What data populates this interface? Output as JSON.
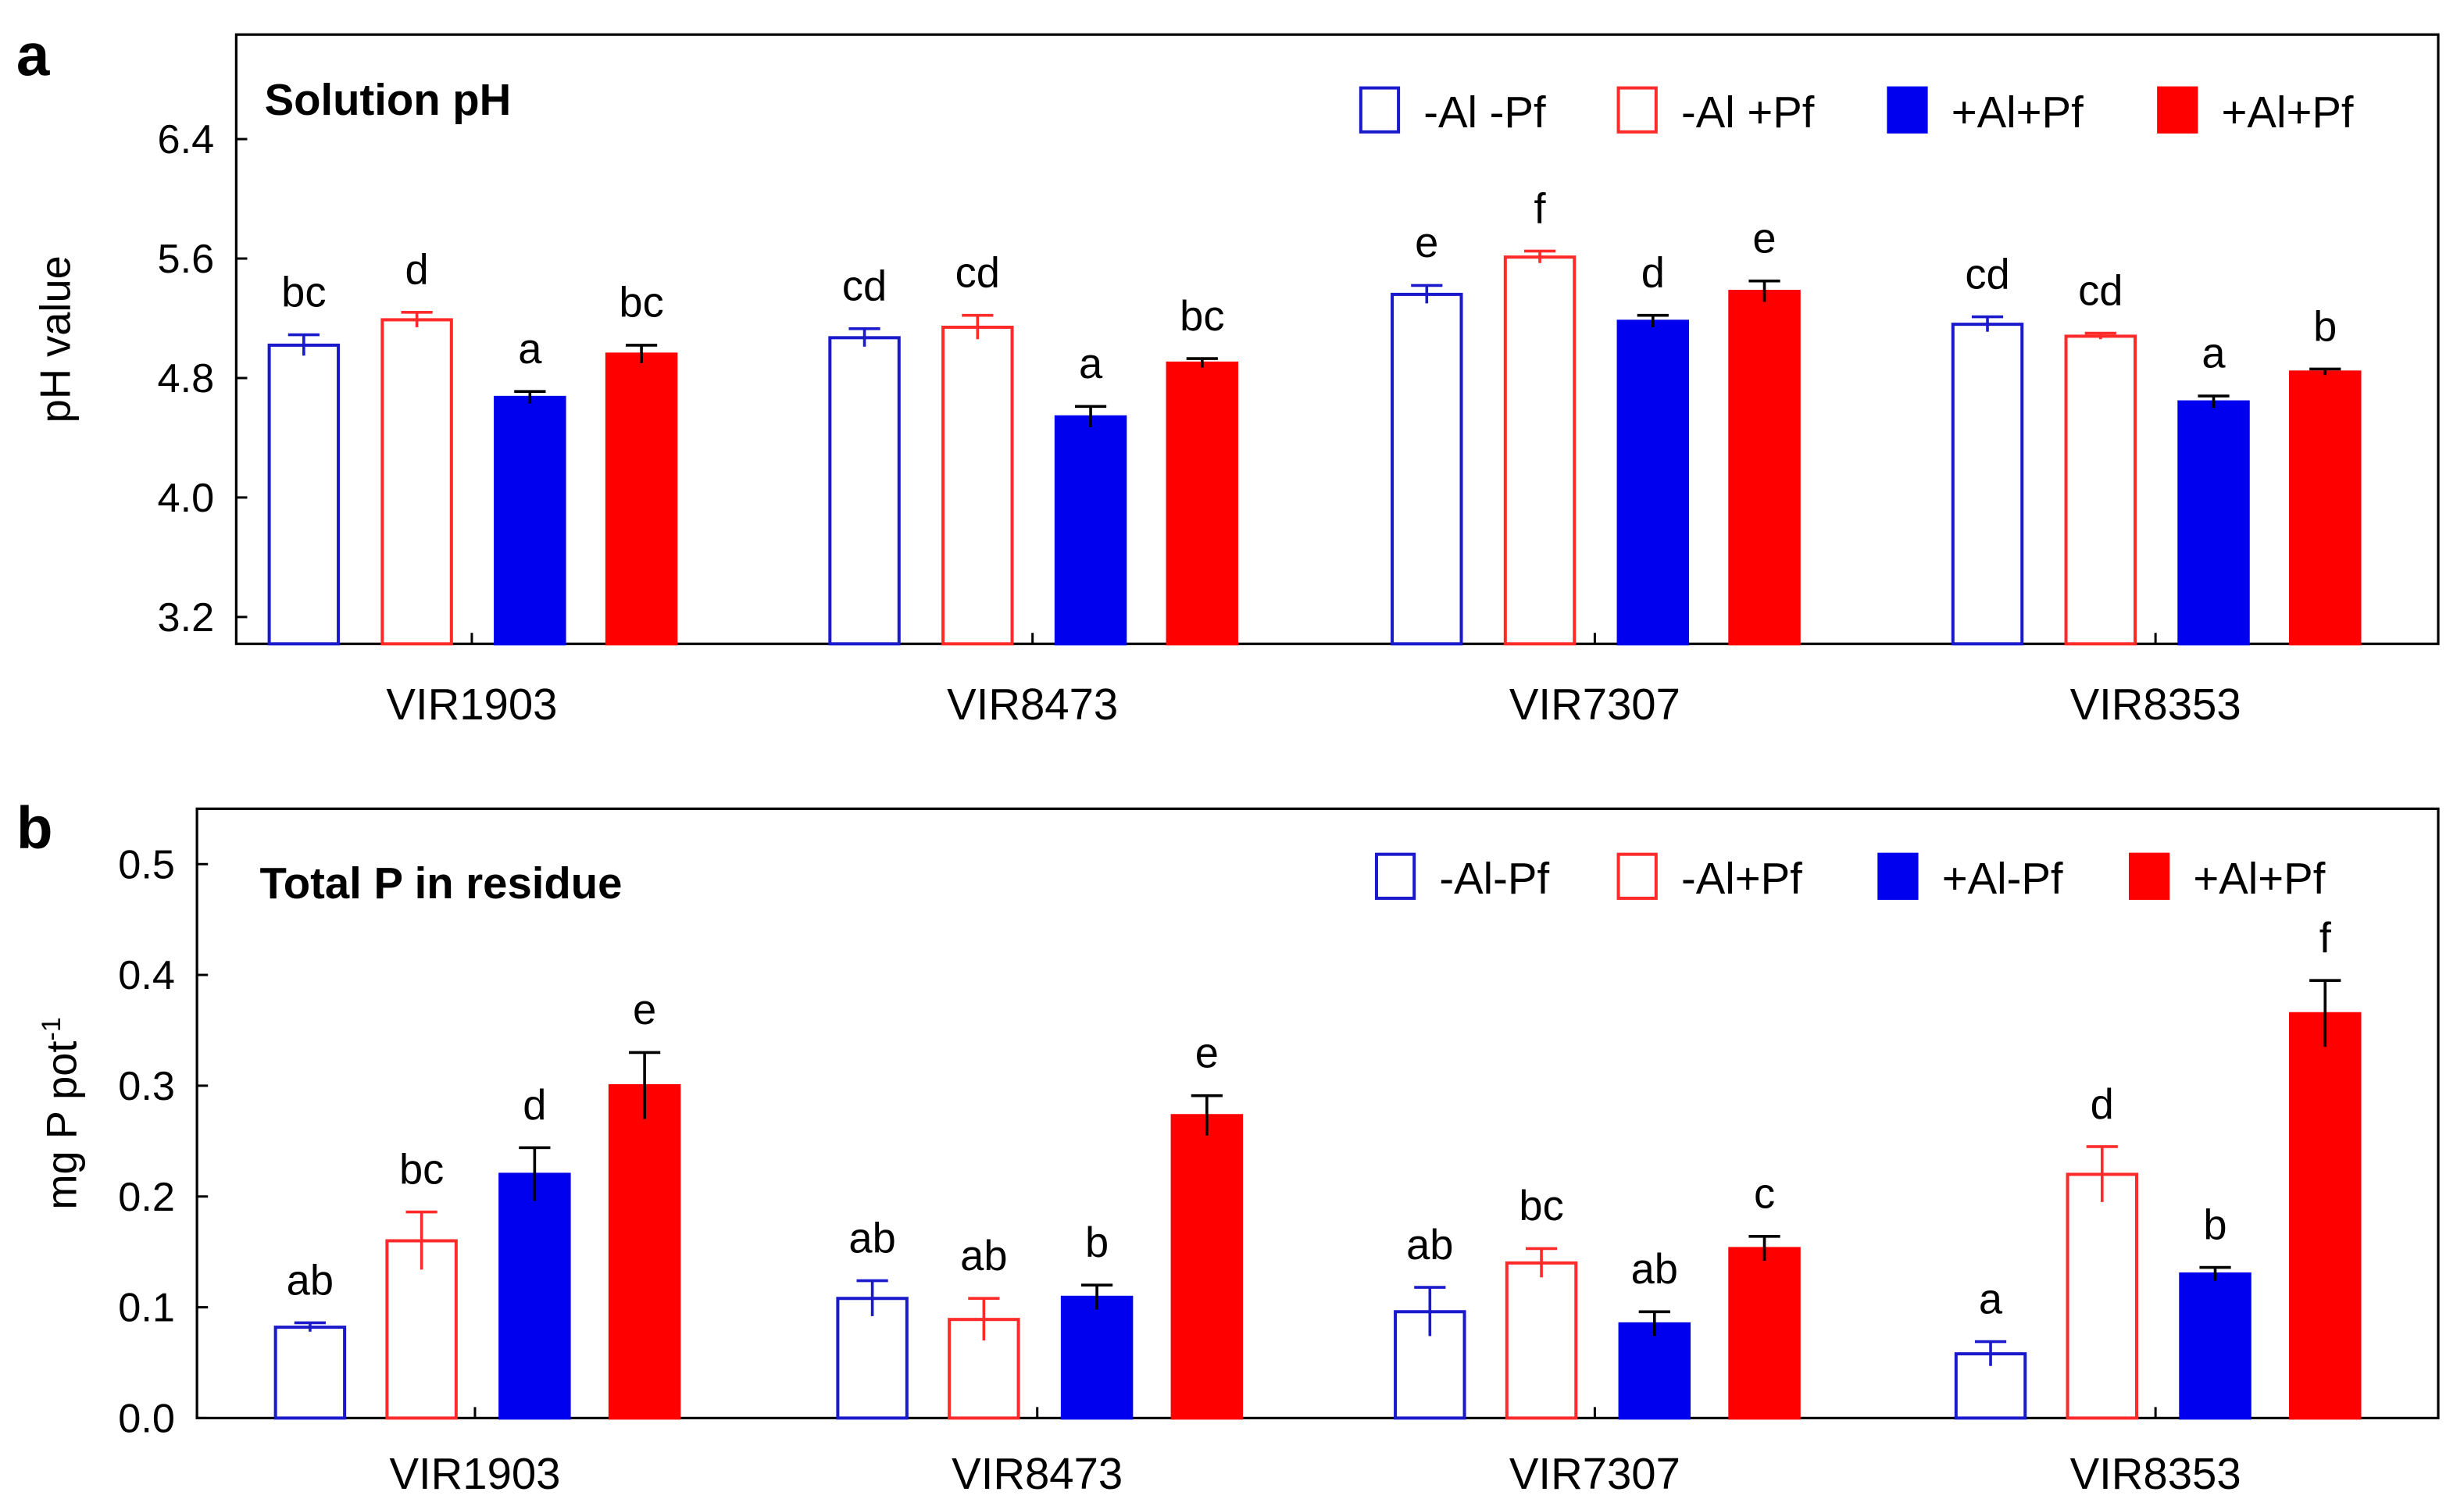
{
  "chart_data": [
    {
      "type": "bar",
      "panel_label": "a",
      "title": "Solution pH",
      "ylabel": "pH value",
      "ylabel_sup": "",
      "xlabel": "",
      "ylim": [
        3.02,
        7.1
      ],
      "yticks": [
        3.2,
        4.0,
        4.8,
        5.6,
        6.4
      ],
      "ytick_labels": [
        "3.2",
        "4.0",
        "4.8",
        "5.6",
        "6.4"
      ],
      "legend_position": "top-right",
      "categories": [
        "VIR1903",
        "VIR8473",
        "VIR7307",
        "VIR8353"
      ],
      "series": [
        {
          "name": "-Al -Pf",
          "color": "#1a1acc",
          "filled": false,
          "values": [
            5.02,
            5.07,
            5.36,
            5.16
          ],
          "errors": [
            0.07,
            0.06,
            0.06,
            0.05
          ],
          "letters": [
            "bc",
            "cd",
            "e",
            "cd"
          ]
        },
        {
          "name": "-Al +Pf",
          "color": "#ff2a2a",
          "filled": false,
          "values": [
            5.19,
            5.14,
            5.61,
            5.08
          ],
          "errors": [
            0.05,
            0.08,
            0.04,
            0.02
          ],
          "letters": [
            "d",
            "cd",
            "f",
            "cd"
          ]
        },
        {
          "name": "+Al+Pf",
          "color": "#0000ee",
          "filled": true,
          "values": [
            4.67,
            4.54,
            5.18,
            4.64
          ],
          "errors": [
            0.04,
            0.07,
            0.04,
            0.04
          ],
          "letters": [
            "a",
            "a",
            "d",
            "a"
          ]
        },
        {
          "name": "+Al+Pf",
          "color": "#ff0000",
          "filled": true,
          "values": [
            4.96,
            4.9,
            5.38,
            4.84
          ],
          "errors": [
            0.06,
            0.03,
            0.07,
            0.02
          ],
          "letters": [
            "bc",
            "bc",
            "e",
            "b"
          ]
        }
      ]
    },
    {
      "type": "bar",
      "panel_label": "b",
      "title": "Total P in residue",
      "ylabel": "mg P pot",
      "ylabel_sup": "-1",
      "xlabel": "",
      "ylim": [
        0.0,
        0.55
      ],
      "yticks": [
        0.0,
        0.1,
        0.2,
        0.3,
        0.4,
        0.5
      ],
      "ytick_labels": [
        "0.0",
        "0.1",
        "0.2",
        "0.3",
        "0.4",
        "0.5"
      ],
      "legend_position": "top-right",
      "categories": [
        "VIR1903",
        "VIR8473",
        "VIR7307",
        "VIR8353"
      ],
      "series": [
        {
          "name": "-Al-Pf",
          "color": "#1a1acc",
          "filled": false,
          "values": [
            0.082,
            0.108,
            0.096,
            0.058
          ],
          "errors": [
            0.004,
            0.016,
            0.022,
            0.011
          ],
          "letters": [
            "ab",
            "ab",
            "ab",
            "a"
          ]
        },
        {
          "name": "-Al+Pf",
          "color": "#ff2a2a",
          "filled": false,
          "values": [
            0.16,
            0.089,
            0.14,
            0.22
          ],
          "errors": [
            0.026,
            0.019,
            0.013,
            0.025
          ],
          "letters": [
            "bc",
            "ab",
            "bc",
            "d"
          ]
        },
        {
          "name": "+Al-Pf",
          "color": "#0000ee",
          "filled": true,
          "values": [
            0.22,
            0.109,
            0.085,
            0.13
          ],
          "errors": [
            0.024,
            0.011,
            0.011,
            0.006
          ],
          "letters": [
            "d",
            "b",
            "ab",
            "b"
          ]
        },
        {
          "name": "+Al+Pf",
          "color": "#ff0000",
          "filled": true,
          "values": [
            0.3,
            0.273,
            0.153,
            0.365
          ],
          "errors": [
            0.03,
            0.018,
            0.011,
            0.03
          ],
          "letters": [
            "e",
            "e",
            "c",
            "f"
          ]
        }
      ]
    }
  ]
}
